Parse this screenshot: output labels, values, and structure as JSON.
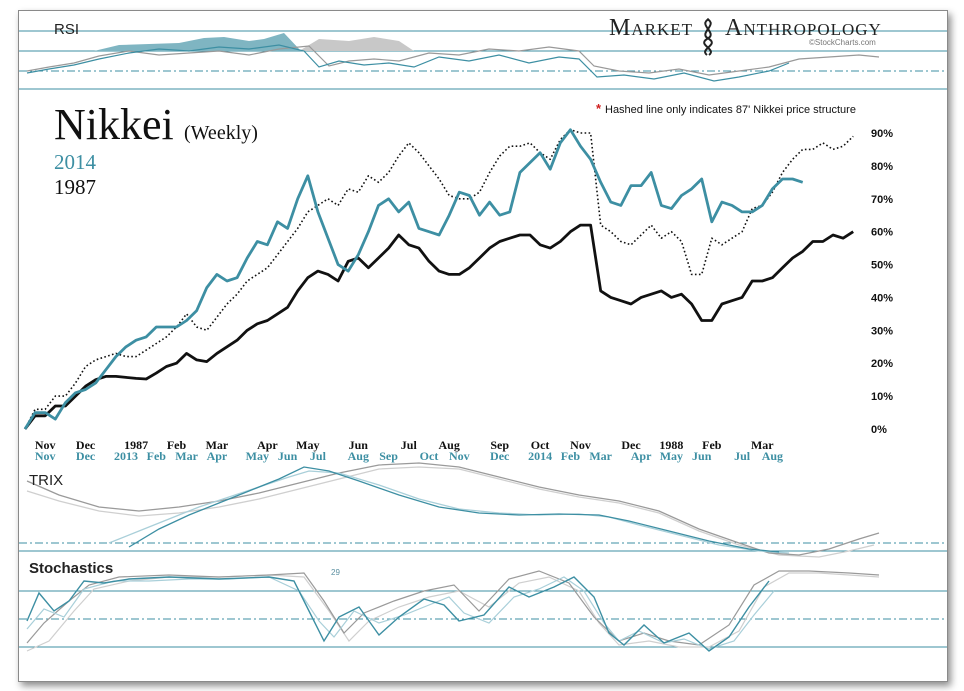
{
  "brand": {
    "word1": "Market",
    "word2": "Anthropology",
    "source": "©StockCharts.com"
  },
  "chart_title": "Nikkei",
  "chart_subtitle": "(Weekly)",
  "note": {
    "star": "*",
    "text": "Hashed line only indicates 87' Nikkei price structure"
  },
  "panels": {
    "rsi_label": "RSI",
    "trix_label": "TRIX",
    "stoch_label": "Stochastics",
    "stoch_small_value": "29"
  },
  "colors": {
    "series_2014": "#3d8fa3",
    "series_1987": "#111111",
    "hashed": "#111111",
    "panel_line": "#3d8fa3",
    "rsi_fill_2014": "#7fb5c2",
    "rsi_fill_1987": "#c8c8c8",
    "indicator_2014_light": "#a9cfd9",
    "indicator_1987": "#9a9a9a",
    "indicator_1987_light": "#cfcfcf",
    "accent_star": "#d02020"
  },
  "chart_data": {
    "type": "line",
    "legend": [
      "2014",
      "1987"
    ],
    "y_tick_labels": [
      "0%",
      "10%",
      "20%",
      "30%",
      "40%",
      "50%",
      "60%",
      "70%",
      "80%",
      "90%"
    ],
    "ylim": [
      0,
      90
    ],
    "x_labels_1987": [
      {
        "i": 2,
        "label": "Nov"
      },
      {
        "i": 6,
        "label": "Dec"
      },
      {
        "i": 11,
        "label": "1987"
      },
      {
        "i": 15,
        "label": "Feb"
      },
      {
        "i": 19,
        "label": "Mar"
      },
      {
        "i": 24,
        "label": "Apr"
      },
      {
        "i": 28,
        "label": "May"
      },
      {
        "i": 33,
        "label": "Jun"
      },
      {
        "i": 38,
        "label": "Jul"
      },
      {
        "i": 42,
        "label": "Aug"
      },
      {
        "i": 47,
        "label": "Sep"
      },
      {
        "i": 51,
        "label": "Oct"
      },
      {
        "i": 55,
        "label": "Nov"
      },
      {
        "i": 60,
        "label": "Dec"
      },
      {
        "i": 64,
        "label": "1988"
      },
      {
        "i": 68,
        "label": "Feb"
      },
      {
        "i": 73,
        "label": "Mar"
      }
    ],
    "x_labels_2014": [
      {
        "i": 2,
        "label": "Nov"
      },
      {
        "i": 6,
        "label": "Dec"
      },
      {
        "i": 10,
        "label": "2013"
      },
      {
        "i": 13,
        "label": "Feb"
      },
      {
        "i": 16,
        "label": "Mar"
      },
      {
        "i": 19,
        "label": "Apr"
      },
      {
        "i": 23,
        "label": "May"
      },
      {
        "i": 26,
        "label": "Jun"
      },
      {
        "i": 29,
        "label": "Jul"
      },
      {
        "i": 33,
        "label": "Aug"
      },
      {
        "i": 36,
        "label": "Sep"
      },
      {
        "i": 40,
        "label": "Oct"
      },
      {
        "i": 43,
        "label": "Nov"
      },
      {
        "i": 47,
        "label": "Dec"
      },
      {
        "i": 51,
        "label": "2014"
      },
      {
        "i": 54,
        "label": "Feb"
      },
      {
        "i": 57,
        "label": "Mar"
      },
      {
        "i": 61,
        "label": "Apr"
      },
      {
        "i": 64,
        "label": "May"
      },
      {
        "i": 67,
        "label": "Jun"
      },
      {
        "i": 71,
        "label": "Jul"
      },
      {
        "i": 74,
        "label": "Aug"
      }
    ],
    "series": [
      {
        "name": "2014",
        "color": "#3d8fa3",
        "style": "solid",
        "values": [
          0,
          5,
          5,
          3,
          8,
          11,
          12,
          14,
          18,
          22,
          25,
          27,
          28,
          31,
          31,
          31,
          33,
          36,
          43,
          47,
          45,
          46,
          52,
          57,
          56,
          63,
          61,
          70,
          77,
          66,
          58,
          50,
          48,
          53,
          60,
          68,
          70,
          66,
          69,
          61,
          60,
          59,
          65,
          72,
          71,
          65,
          69,
          65,
          66,
          78,
          81,
          84,
          79,
          87,
          91,
          86,
          82,
          75,
          69,
          68,
          74,
          74,
          78,
          68,
          67,
          71,
          73,
          76,
          63,
          69,
          68,
          66,
          66,
          68,
          73,
          76,
          76,
          75
        ]
      },
      {
        "name": "1987",
        "color": "#111111",
        "style": "solid",
        "values": [
          0,
          4,
          4,
          7,
          7,
          10,
          13,
          15,
          16,
          16,
          15.7,
          15.4,
          15.2,
          17,
          19,
          20,
          23,
          21,
          20.5,
          23,
          25,
          27,
          30,
          32,
          33,
          35,
          37,
          42,
          46,
          48,
          47,
          45,
          51,
          52,
          49,
          52,
          55,
          59,
          56,
          55,
          51,
          48,
          47,
          47,
          49,
          52,
          55,
          57,
          58,
          59,
          59,
          56,
          55,
          57,
          60,
          62,
          62,
          42,
          40,
          39,
          38,
          40,
          41,
          42,
          40,
          41,
          38,
          33,
          33,
          38,
          39,
          40,
          45,
          45,
          46,
          49,
          52,
          54,
          57,
          57,
          59,
          58,
          60
        ]
      },
      {
        "name": "",
        "color": "#111111",
        "style": "dotted",
        "values": [
          0,
          6,
          6,
          10,
          10,
          14,
          19,
          21,
          22,
          23,
          22,
          22,
          24,
          26,
          28,
          31,
          35,
          31,
          30,
          34,
          38,
          41,
          45,
          47,
          49,
          53,
          57,
          61,
          66,
          68,
          70,
          68,
          73,
          72,
          77,
          75,
          78,
          83,
          87,
          84,
          80,
          76,
          71,
          70,
          70,
          72,
          78,
          83,
          86,
          86,
          87,
          84,
          82,
          88,
          91,
          90,
          90,
          62,
          60,
          57,
          56,
          59,
          62,
          58,
          60,
          57,
          47,
          47,
          58,
          56,
          58,
          60,
          67,
          68,
          72,
          78,
          82,
          85,
          85,
          87,
          85,
          86,
          89
        ]
      }
    ]
  }
}
